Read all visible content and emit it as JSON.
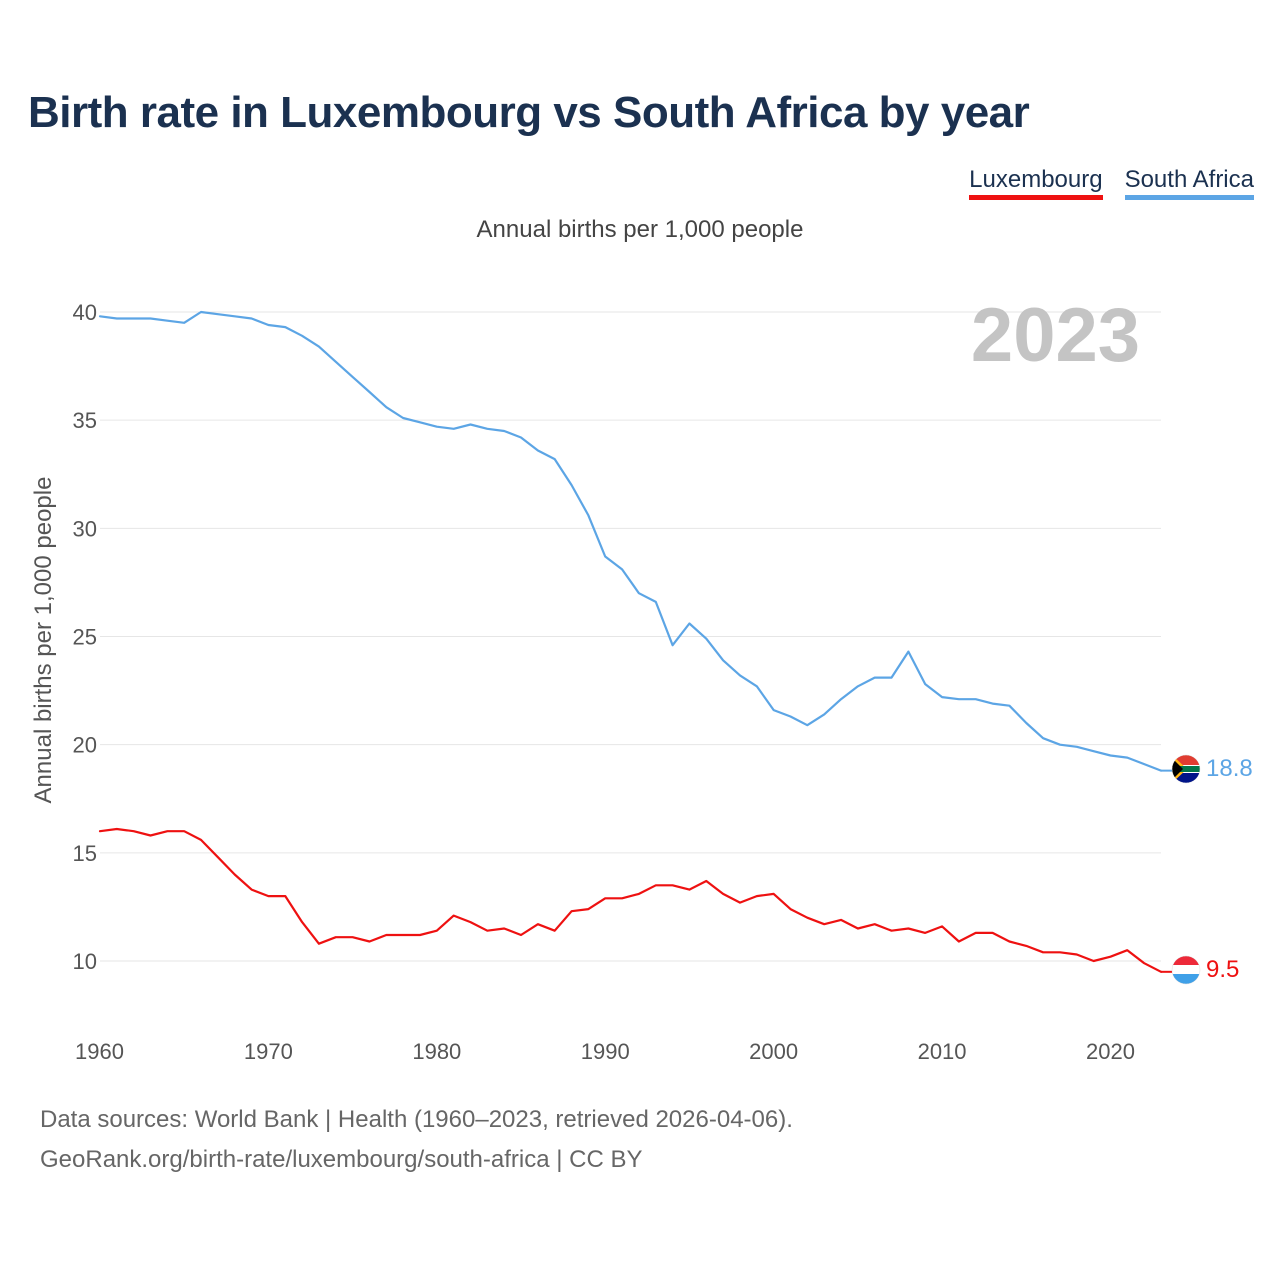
{
  "title": "Birth rate in Luxembourg vs South Africa by year",
  "subtitle": "Annual births per 1,000 people",
  "legend": [
    {
      "label": "Luxembourg",
      "color": "#ee1111"
    },
    {
      "label": "South Africa",
      "color": "#5ca5e5"
    }
  ],
  "source": {
    "line1": "Data sources: World Bank | Health (1960–2023, retrieved 2026-04-06).",
    "line2": "GeoRank.org/birth-rate/luxembourg/south-africa | CC BY"
  },
  "chart_data": {
    "type": "line",
    "title": "Birth rate in Luxembourg vs South Africa by year",
    "xlabel": "",
    "ylabel": "Annual births per 1,000 people",
    "current_year": "2023",
    "xlim": [
      1960,
      2023
    ],
    "ylim": [
      7,
      41
    ],
    "yticks": [
      10,
      15,
      20,
      25,
      30,
      35,
      40
    ],
    "xticks": [
      1960,
      1970,
      1980,
      1990,
      2000,
      2010,
      2020
    ],
    "x": [
      1960,
      1961,
      1962,
      1963,
      1964,
      1965,
      1966,
      1967,
      1968,
      1969,
      1970,
      1971,
      1972,
      1973,
      1974,
      1975,
      1976,
      1977,
      1978,
      1979,
      1980,
      1981,
      1982,
      1983,
      1984,
      1985,
      1986,
      1987,
      1988,
      1989,
      1990,
      1991,
      1992,
      1993,
      1994,
      1995,
      1996,
      1997,
      1998,
      1999,
      2000,
      2001,
      2002,
      2003,
      2004,
      2005,
      2006,
      2007,
      2008,
      2009,
      2010,
      2011,
      2012,
      2013,
      2014,
      2015,
      2016,
      2017,
      2018,
      2019,
      2020,
      2021,
      2022,
      2023
    ],
    "series": [
      {
        "name": "Luxembourg",
        "color": "#ee1111",
        "end_label": "9.5",
        "values": [
          16.0,
          16.1,
          16.0,
          15.8,
          16.0,
          16.0,
          15.6,
          14.8,
          14.0,
          13.3,
          13.0,
          13.0,
          11.8,
          10.8,
          11.1,
          11.1,
          10.9,
          11.2,
          11.2,
          11.2,
          11.4,
          12.1,
          11.8,
          11.4,
          11.5,
          11.2,
          11.7,
          11.4,
          12.3,
          12.4,
          12.9,
          12.9,
          13.1,
          13.5,
          13.5,
          13.3,
          13.7,
          13.1,
          12.7,
          13.0,
          13.1,
          12.4,
          12.0,
          11.7,
          11.9,
          11.5,
          11.7,
          11.4,
          11.5,
          11.3,
          11.6,
          10.9,
          11.3,
          11.3,
          10.9,
          10.7,
          10.4,
          10.4,
          10.3,
          10.0,
          10.2,
          10.5,
          9.9,
          9.5
        ]
      },
      {
        "name": "South Africa",
        "color": "#5ca5e5",
        "end_label": "18.8",
        "values": [
          39.8,
          39.7,
          39.7,
          39.7,
          39.6,
          39.5,
          40.0,
          39.9,
          39.8,
          39.7,
          39.4,
          39.3,
          38.9,
          38.4,
          37.7,
          37.0,
          36.3,
          35.6,
          35.1,
          34.9,
          34.7,
          34.6,
          34.8,
          34.6,
          34.5,
          34.2,
          33.6,
          33.2,
          32.0,
          30.6,
          28.7,
          28.1,
          27.0,
          26.6,
          24.6,
          25.6,
          24.9,
          23.9,
          23.2,
          22.7,
          21.6,
          21.3,
          20.9,
          21.4,
          22.1,
          22.7,
          23.1,
          23.1,
          24.3,
          22.8,
          22.2,
          22.1,
          22.1,
          21.9,
          21.8,
          21.0,
          20.3,
          20.0,
          19.9,
          19.7,
          19.5,
          19.4,
          19.1,
          18.8
        ]
      }
    ]
  }
}
